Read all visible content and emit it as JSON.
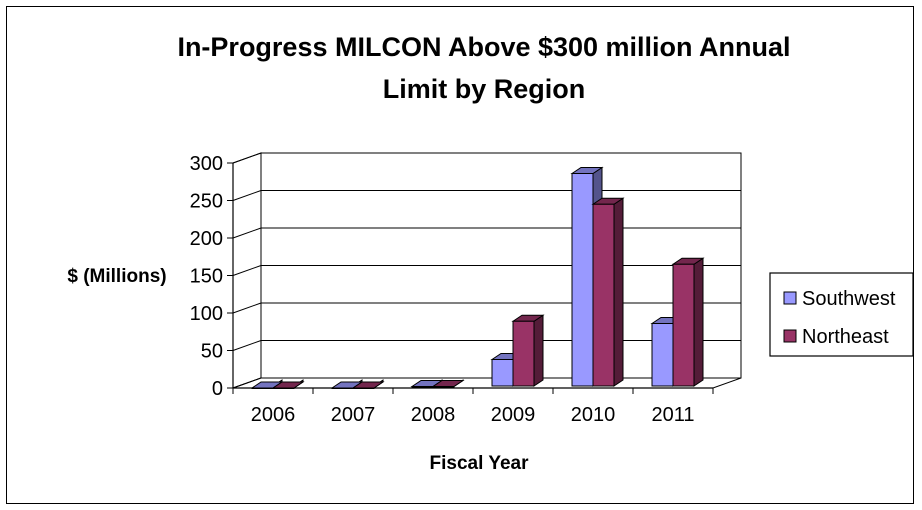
{
  "chart_data": {
    "type": "bar",
    "title_lines": [
      "In-Progress MILCON Above $300 million Annual",
      "Limit by Region"
    ],
    "xlabel": "Fiscal Year",
    "ylabel": "$ (Millions)",
    "categories": [
      "2006",
      "2007",
      "2008",
      "2009",
      "2010",
      "2011"
    ],
    "ylim": [
      0,
      300
    ],
    "yticks": [
      "0",
      "50",
      "100",
      "150",
      "200",
      "250",
      "300"
    ],
    "series": [
      {
        "name": "Southwest",
        "color": "#9999FF",
        "values": [
          0,
          0,
          2,
          38,
          286,
          86
        ]
      },
      {
        "name": "Northeast",
        "color": "#993366",
        "values": [
          0,
          0,
          2,
          89,
          245,
          165
        ]
      }
    ],
    "grid": true,
    "legend": "right"
  }
}
